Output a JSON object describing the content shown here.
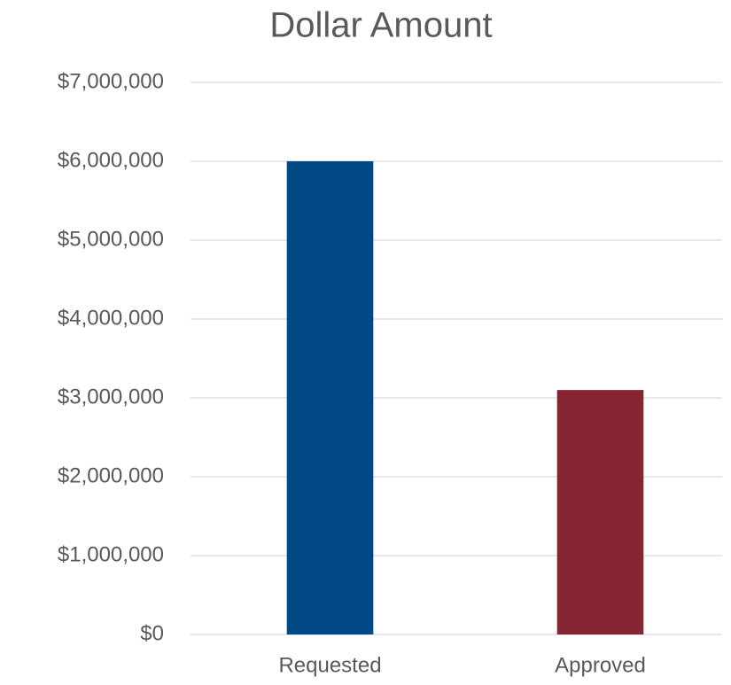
{
  "chart_data": {
    "type": "bar",
    "title": "Dollar Amount",
    "categories": [
      "Requested",
      "Approved"
    ],
    "values": [
      6000000,
      3100000
    ],
    "colors": [
      "#004987",
      "#862633"
    ],
    "ylim": [
      0,
      7000000
    ],
    "yticks": [
      {
        "value": 0,
        "label": "$0"
      },
      {
        "value": 1000000,
        "label": "$1,000,000"
      },
      {
        "value": 2000000,
        "label": "$2,000,000"
      },
      {
        "value": 3000000,
        "label": "$3,000,000"
      },
      {
        "value": 4000000,
        "label": "$4,000,000"
      },
      {
        "value": 5000000,
        "label": "$5,000,000"
      },
      {
        "value": 6000000,
        "label": "$6,000,000"
      },
      {
        "value": 7000000,
        "label": "$7,000,000"
      }
    ],
    "grid": true
  }
}
